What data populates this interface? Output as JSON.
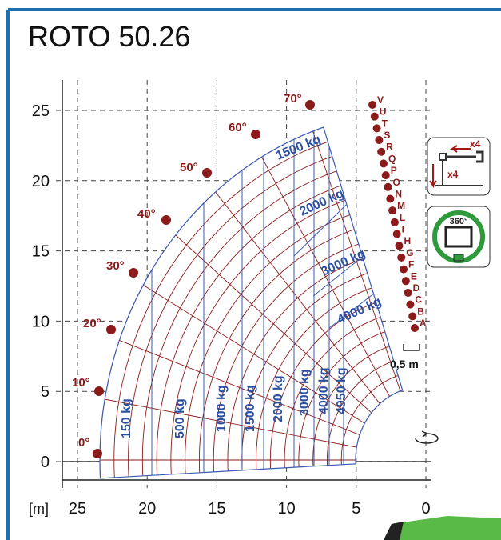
{
  "header": {
    "title": "ROTO 50.26"
  },
  "axes": {
    "unit": "[m]",
    "xticks": [
      25,
      20,
      15,
      10,
      5,
      0
    ],
    "yticks": [
      0,
      5,
      10,
      15,
      20,
      25
    ]
  },
  "angles": [
    "0°",
    "10°",
    "20°",
    "30°",
    "40°",
    "50°",
    "60°",
    "70°"
  ],
  "booms": [
    "A",
    "B",
    "C",
    "D",
    "E",
    "F",
    "G",
    "H",
    "I",
    "L",
    "M",
    "N",
    "O",
    "P",
    "Q",
    "R",
    "S",
    "T",
    "U",
    "V"
  ],
  "loads": {
    "radial": [
      "150 kg",
      "500 kg",
      "1000 kg",
      "1500 kg",
      "2000 kg",
      "3000 kg",
      "4000 kg",
      "4950 kg"
    ],
    "arc": [
      "1500 kg",
      "2000 kg",
      "3000 kg",
      "4000 kg"
    ]
  },
  "scale_note": "0,5 m",
  "icons": {
    "stabilizer_h": "x4",
    "stabilizer_v": "x4",
    "rotation": "360°"
  }
}
